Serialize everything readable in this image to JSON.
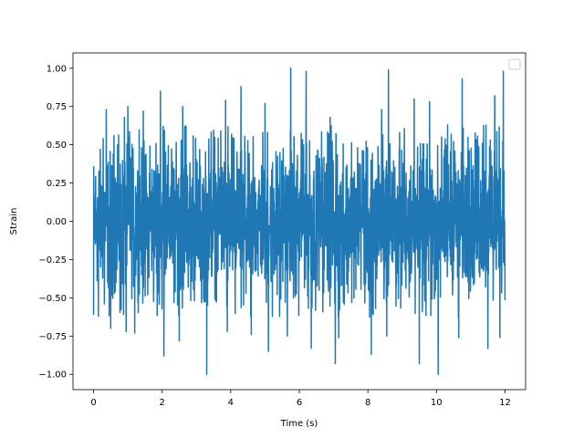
{
  "chart_data": {
    "type": "line",
    "title": "",
    "xlabel": "Time (s)",
    "ylabel": "Strain",
    "xlim": [
      -0.6,
      12.6
    ],
    "ylim": [
      -1.1,
      1.1
    ],
    "x_ticks": [
      0,
      2,
      4,
      6,
      8,
      10,
      12
    ],
    "x_tick_labels": [
      "0",
      "2",
      "4",
      "6",
      "8",
      "10",
      "12"
    ],
    "y_ticks": [
      -1.0,
      -0.75,
      -0.5,
      -0.25,
      0.0,
      0.25,
      0.5,
      0.75,
      1.0
    ],
    "y_tick_labels": [
      "−1.00",
      "−0.75",
      "−0.50",
      "−0.25",
      "0.00",
      "0.25",
      "0.50",
      "0.75",
      "1.00"
    ],
    "grid": false,
    "legend": {
      "placement": "upper right",
      "entries": []
    },
    "series": [
      {
        "color": "#1f77b4",
        "description_note": "dense noise-like signal, approximately uniform amplitude, bulk within ±0.55, peaks up to ±1.0",
        "x_range": [
          0,
          12
        ],
        "peaks": [
          {
            "x": 0.0,
            "y": 0.78
          },
          {
            "x": 0.0,
            "y": -0.85
          },
          {
            "x": 0.37,
            "y": 0.73
          },
          {
            "x": 0.5,
            "y": -0.7
          },
          {
            "x": 0.9,
            "y": 0.68
          },
          {
            "x": 0.95,
            "y": -0.72
          },
          {
            "x": 1.0,
            "y": 0.75
          },
          {
            "x": 1.2,
            "y": -0.73
          },
          {
            "x": 1.45,
            "y": 0.72
          },
          {
            "x": 1.05,
            "y": -0.75
          },
          {
            "x": 1.95,
            "y": 0.85
          },
          {
            "x": 2.05,
            "y": -0.88
          },
          {
            "x": 2.6,
            "y": 0.75
          },
          {
            "x": 2.5,
            "y": -0.78
          },
          {
            "x": 3.3,
            "y": 0.99
          },
          {
            "x": 3.3,
            "y": -1.0
          },
          {
            "x": 3.85,
            "y": 0.79
          },
          {
            "x": 3.9,
            "y": -0.72
          },
          {
            "x": 4.3,
            "y": 0.88
          },
          {
            "x": 4.6,
            "y": -0.74
          },
          {
            "x": 5.0,
            "y": 0.77
          },
          {
            "x": 5.1,
            "y": -0.85
          },
          {
            "x": 5.75,
            "y": 1.0
          },
          {
            "x": 5.65,
            "y": -0.75
          },
          {
            "x": 6.2,
            "y": 0.98
          },
          {
            "x": 6.35,
            "y": -0.83
          },
          {
            "x": 6.9,
            "y": 0.68
          },
          {
            "x": 7.05,
            "y": -0.93
          },
          {
            "x": 7.7,
            "y": 0.85
          },
          {
            "x": 7.15,
            "y": -0.76
          },
          {
            "x": 8.4,
            "y": 0.73
          },
          {
            "x": 8.1,
            "y": -0.87
          },
          {
            "x": 8.6,
            "y": 0.99
          },
          {
            "x": 8.55,
            "y": -0.75
          },
          {
            "x": 9.35,
            "y": 0.8
          },
          {
            "x": 9.5,
            "y": -0.93
          },
          {
            "x": 9.8,
            "y": 0.78
          },
          {
            "x": 10.05,
            "y": -1.0
          },
          {
            "x": 10.75,
            "y": 0.93
          },
          {
            "x": 10.65,
            "y": -0.76
          },
          {
            "x": 11.7,
            "y": 0.82
          },
          {
            "x": 11.5,
            "y": -0.83
          },
          {
            "x": 11.95,
            "y": 0.98
          },
          {
            "x": 11.85,
            "y": -0.76
          }
        ]
      }
    ]
  }
}
